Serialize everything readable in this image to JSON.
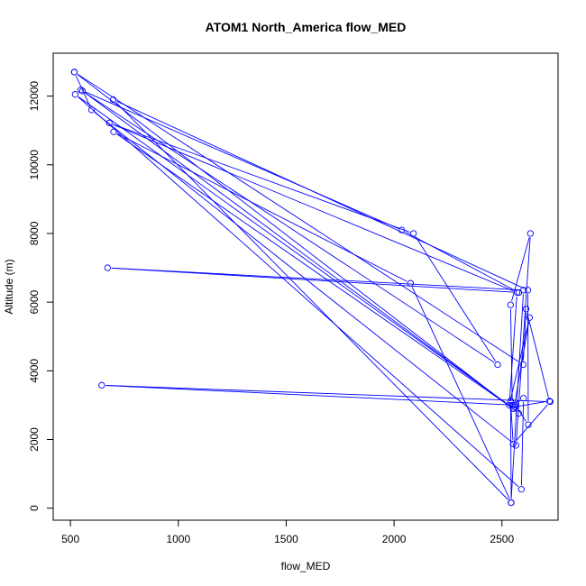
{
  "chart_data": {
    "type": "line",
    "title": "ATOM1 North_America flow_MED",
    "xlabel": "flow_MED",
    "ylabel": "Altitude (m)",
    "xlim": [
      420,
      2760
    ],
    "ylim": [
      -350,
      13250
    ],
    "xticks": [
      500,
      1000,
      1500,
      2000,
      2500
    ],
    "yticks": [
      0,
      2000,
      4000,
      6000,
      8000,
      10000,
      12000
    ],
    "line_color": "#0000ff",
    "marker": "open-circle",
    "grid": false,
    "legend": "none",
    "series": [
      {
        "x": [
          518,
          2598,
          2612,
          2720,
          2560,
          2578,
          518,
          598,
          2565,
          2632,
          2540,
          2548,
          2600,
          2590,
          522,
          2555,
          2628,
          2534,
          2570,
          680,
          2090,
          2480,
          548,
          2035,
          2578,
          672,
          2600,
          2542,
          698,
          2620,
          2622,
          2562,
          645,
          2724,
          2552,
          2540,
          2543,
          2076,
          700,
          2552,
          556
        ],
        "y": [
          12700,
          4180,
          5800,
          3120,
          2950,
          2760,
          12700,
          11600,
          1830,
          8000,
          5920,
          3000,
          3200,
          550,
          12050,
          2900,
          5550,
          3000,
          6280,
          11220,
          8000,
          4180,
          12180,
          8100,
          6280,
          7000,
          6350,
          160,
          11900,
          6350,
          2430,
          3000,
          3580,
          3100,
          1870,
          3120,
          160,
          6550,
          10960,
          2900,
          12150
        ]
      }
    ]
  }
}
